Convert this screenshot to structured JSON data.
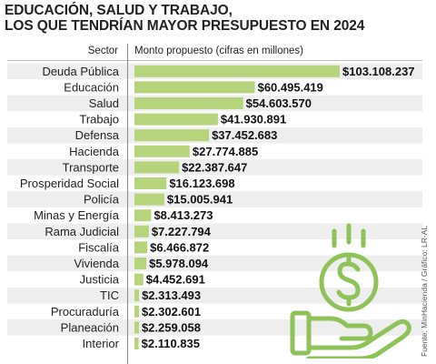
{
  "title_line1": "EDUCACIÓN, SALUD Y TRABAJO,",
  "title_line2": "LOS QUE TENDRÍAN MAYOR PRESUPUESTO EN 2024",
  "header_sector": "Sector",
  "header_amount": "Monto propuesto (cifras en millones)",
  "source": "Fuente: MinHacienda / Gráfico: LR-AL",
  "colors": {
    "bar": "#b5d47b",
    "band": "#eeeeee",
    "icon": "#8fc35a"
  },
  "icon": "hand-holding-dollar-icon",
  "chart_data": {
    "type": "bar",
    "orientation": "horizontal",
    "categories": [
      "Deuda Pública",
      "Educación",
      "Salud",
      "Trabajo",
      "Defensa",
      "Hacienda",
      "Transporte",
      "Prosperidad Social",
      "Policía",
      "Minas y Energía",
      "Rama Judicial",
      "Fiscalía",
      "Vivienda",
      "Justicia",
      "TIC",
      "Procuraduría",
      "Planeación",
      "Interior"
    ],
    "values": [
      103108237,
      60495419,
      54603570,
      41930891,
      37452683,
      27774885,
      22387647,
      16123698,
      15005941,
      8413273,
      7227794,
      6466872,
      5978094,
      4452691,
      2313493,
      2302601,
      2259058,
      2110835
    ],
    "value_labels": [
      "$103.108.237",
      "$60.495.419",
      "$54.603.570",
      "$41.930.891",
      "$37.452.683",
      "$27.774.885",
      "$22.387.647",
      "$16.123.698",
      "$15.005.941",
      "$8.413.273",
      "$7.227.794",
      "$6.466.872",
      "$5.978.094",
      "$4.452.691",
      "$2.313.493",
      "$2.302.601",
      "$2.259.058",
      "$2.110.835"
    ],
    "xlim": [
      0,
      103108237
    ],
    "grid": false,
    "legend": "none"
  }
}
